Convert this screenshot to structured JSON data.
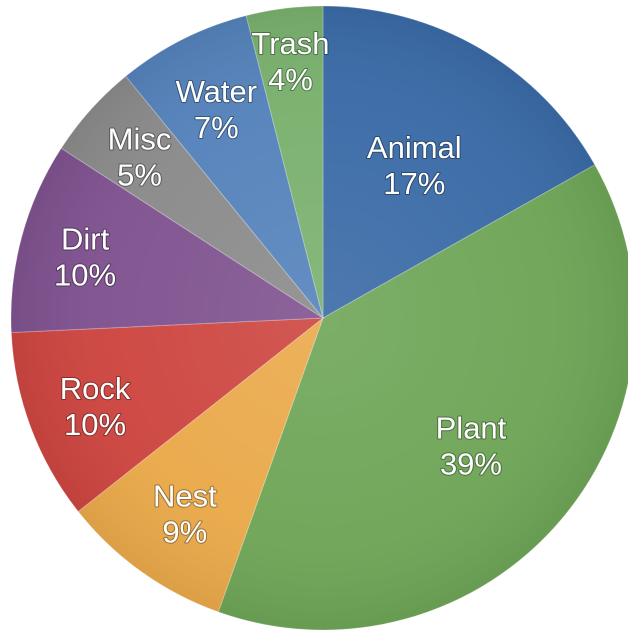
{
  "chart_data": {
    "type": "pie",
    "title": "",
    "start_angle_deg": 0,
    "direction": "clockwise",
    "slices": [
      {
        "label": "Animal",
        "value": 17,
        "display": "17%",
        "color": "#3a6aa6"
      },
      {
        "label": "Plant",
        "value": 39,
        "display": "39%",
        "color": "#6ea557"
      },
      {
        "label": "Nest",
        "value": 9,
        "display": "9%",
        "color": "#eaa94a"
      },
      {
        "label": "Rock",
        "value": 10,
        "display": "10%",
        "color": "#cd4540"
      },
      {
        "label": "Dirt",
        "value": 10,
        "display": "10%",
        "color": "#7f528f"
      },
      {
        "label": "Misc",
        "value": 5,
        "display": "5%",
        "color": "#8a8a8a"
      },
      {
        "label": "Water",
        "value": 7,
        "display": "7%",
        "color": "#5482bb"
      },
      {
        "label": "Trash",
        "value": 4,
        "display": "4%",
        "color": "#79b06d"
      }
    ]
  }
}
